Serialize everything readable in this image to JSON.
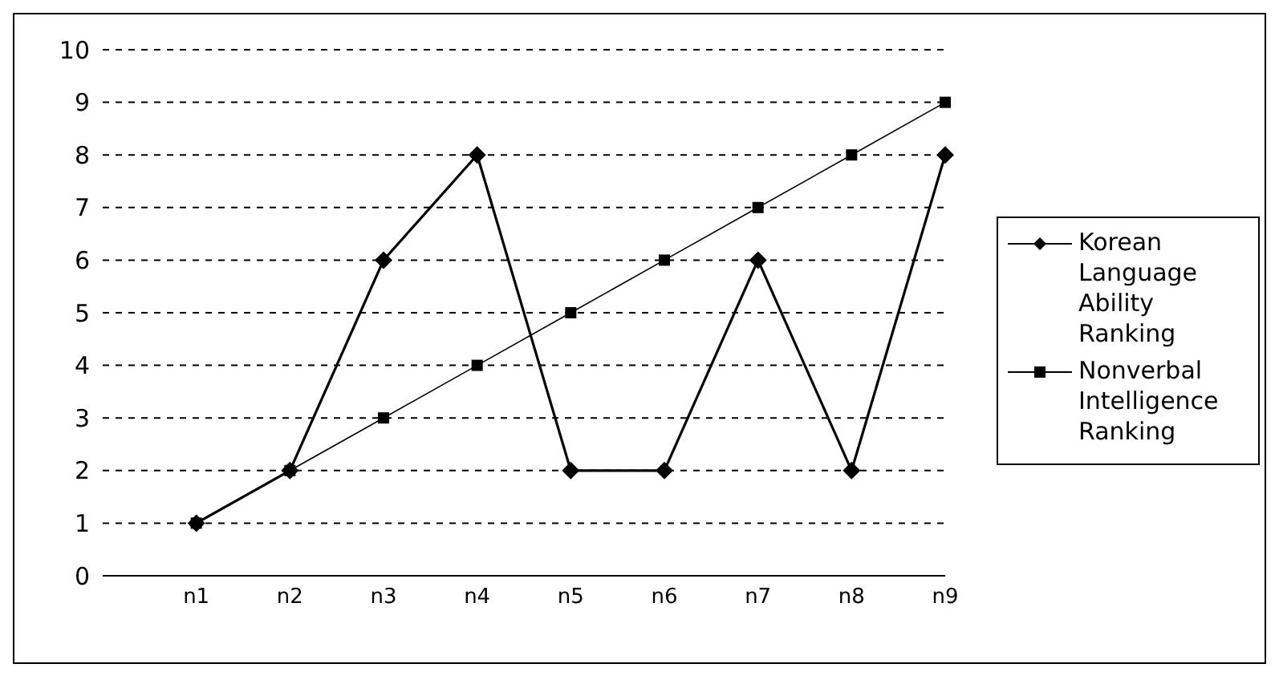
{
  "chart_data": {
    "type": "line",
    "categories": [
      null,
      "n1",
      "n2",
      "n3",
      "n4",
      "n5",
      "n6",
      "n7",
      "n8",
      "n9"
    ],
    "series": [
      {
        "name": "Korean Language Ability Ranking",
        "color": "#000000",
        "marker": "diamond",
        "values": [
          null,
          1,
          2,
          6,
          8,
          2,
          2,
          6,
          2,
          8
        ]
      },
      {
        "name": "Nonverbal Intelligence Ranking",
        "color": "#000000",
        "marker": "square",
        "values": [
          null,
          1,
          2,
          3,
          4,
          5,
          6,
          7,
          8,
          9
        ]
      }
    ],
    "ylim": [
      0,
      10
    ],
    "yticks": [
      0,
      1,
      2,
      3,
      4,
      5,
      6,
      7,
      8,
      9,
      10
    ],
    "grid": "y",
    "legend": "right",
    "line_style": "solid"
  }
}
